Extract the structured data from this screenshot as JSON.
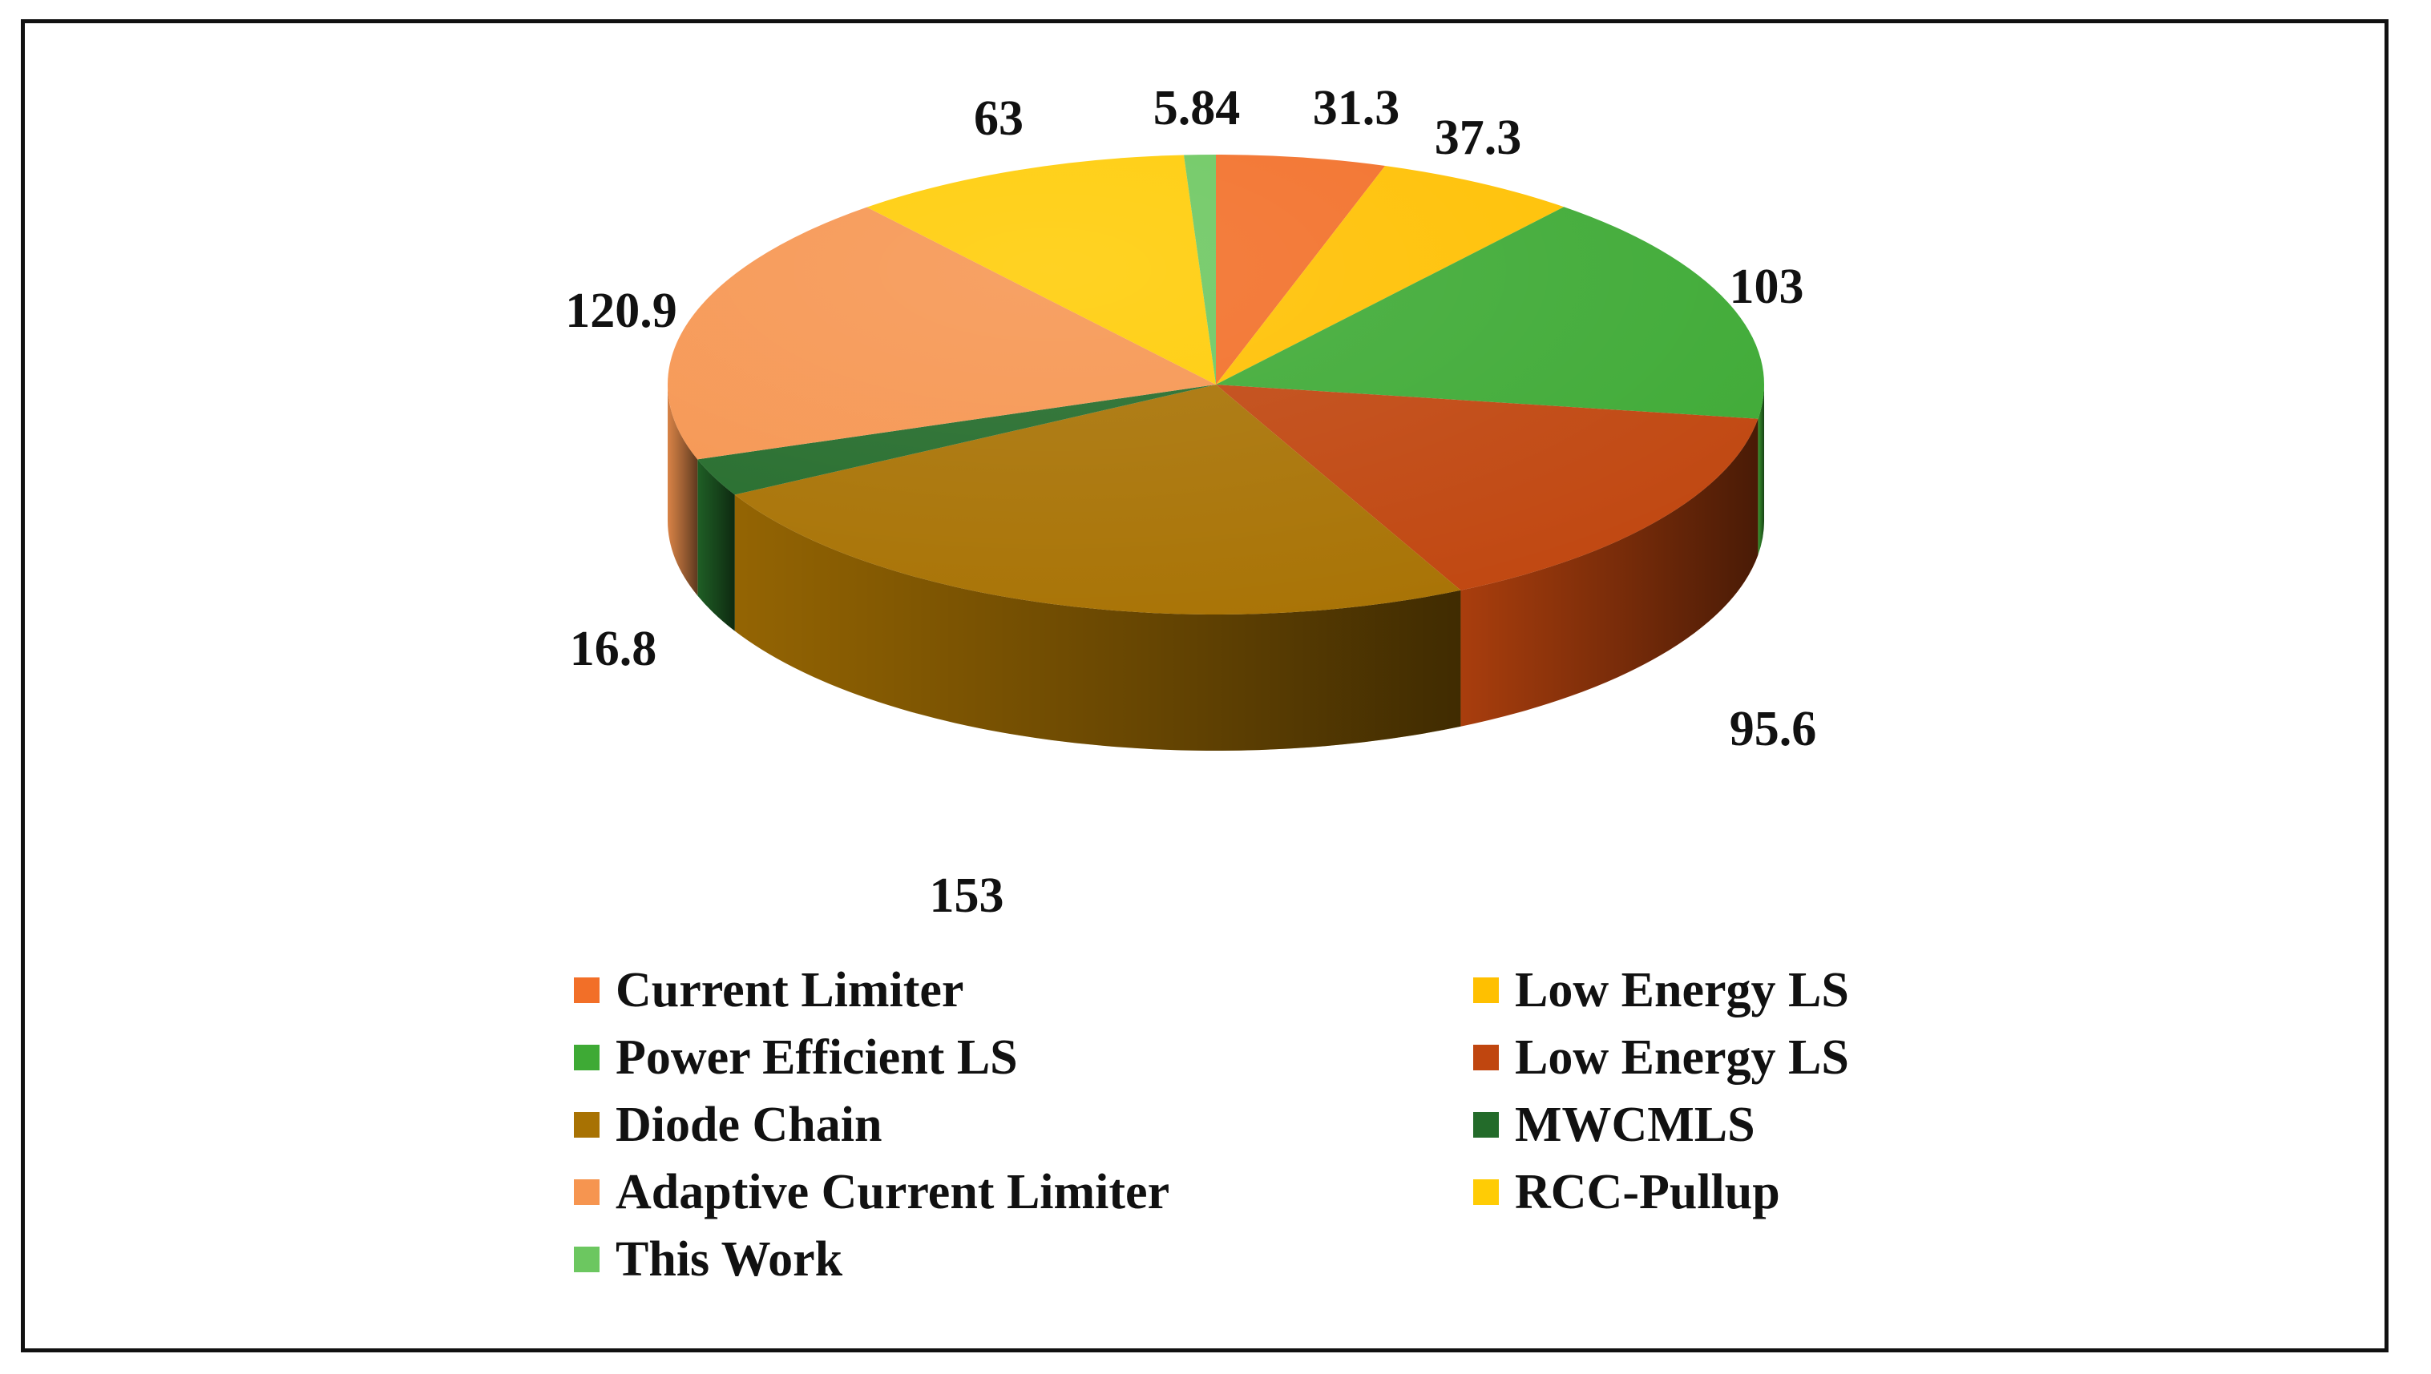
{
  "chart_data": {
    "type": "pie",
    "title": "",
    "three_d": true,
    "legend_position": "bottom",
    "slices": [
      {
        "name": "Current Limiter",
        "value": 31.3,
        "label": "31.3",
        "color": "#f26f28"
      },
      {
        "name": "Low Energy LS",
        "value": 37.3,
        "label": "37.3",
        "color": "#ffc000"
      },
      {
        "name": "Power Efficient LS",
        "value": 103,
        "label": "103",
        "color": "#3eaa35"
      },
      {
        "name": "Low Energy LS",
        "value": 95.6,
        "label": "95.6",
        "color": "#c0460f"
      },
      {
        "name": "Diode Chain",
        "value": 153,
        "label": "153",
        "color": "#a87203"
      },
      {
        "name": "MWCMLS",
        "value": 16.8,
        "label": "16.8",
        "color": "#236b2a"
      },
      {
        "name": "Adaptive Current Limiter",
        "value": 120.9,
        "label": "120.9",
        "color": "#f69550"
      },
      {
        "name": "RCC-Pullup",
        "value": 63,
        "label": "63",
        "color": "#ffcc05"
      },
      {
        "name": "This Work",
        "value": 5.84,
        "label": "5.84",
        "color": "#6cc760"
      }
    ]
  }
}
